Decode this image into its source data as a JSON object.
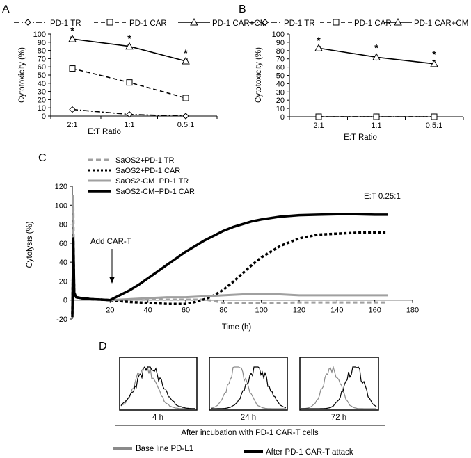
{
  "panels": {
    "A": {
      "label": "A",
      "legend": [
        "PD-1 TR",
        "PD-1 CAR",
        "PD-1 CAR+CM"
      ]
    },
    "B": {
      "label": "B",
      "legend": [
        "PD-1 TR",
        "PD-1 CAR",
        "PD-1 CAR+CM"
      ]
    },
    "C": {
      "label": "C",
      "legend": [
        "SaOS2+PD-1 TR",
        "SaOS2+PD-1 CAR",
        "SaOS2-CM+PD-1 TR",
        "SaOS2-CM+PD-1 CAR"
      ],
      "ratio_text": "E:T 0.25:1",
      "annotation": "Add CAR-T"
    },
    "D": {
      "label": "D",
      "times": [
        "4 h",
        "24 h",
        "72 h"
      ],
      "caption": "After incubation with PD-1 CAR-T cells",
      "legend_baseline": "Base line PD-L1",
      "legend_after": "After PD-1 CAR-T attack",
      "colors": {
        "baseline": "#8a8a8a",
        "after": "#000000"
      }
    }
  },
  "chart_data": [
    {
      "id": "A",
      "type": "line",
      "title": "",
      "xlabel": "E:T Ratio",
      "ylabel": "Cytotoxicity (%)",
      "categories": [
        "2:1",
        "1:1",
        "0.5:1"
      ],
      "yticks": [
        0,
        10,
        20,
        30,
        40,
        50,
        60,
        70,
        80,
        90,
        100
      ],
      "ylim": [
        0,
        100
      ],
      "series": [
        {
          "name": "PD-1 TR",
          "values": [
            8,
            2,
            0
          ],
          "errors": [
            0.5,
            0.5,
            0.5
          ],
          "marker": "diamond",
          "dash": "dashdot",
          "sig": [
            false,
            false,
            false
          ]
        },
        {
          "name": "PD-1 CAR",
          "values": [
            58,
            41,
            22
          ],
          "errors": [
            1,
            1.5,
            2
          ],
          "marker": "square",
          "dash": "dashed",
          "sig": [
            false,
            false,
            false
          ]
        },
        {
          "name": "PD-1 CAR+CM",
          "values": [
            94,
            85,
            67
          ],
          "errors": [
            2.5,
            2.5,
            2.5
          ],
          "marker": "triangle",
          "dash": "solid",
          "sig": [
            true,
            true,
            true
          ]
        }
      ],
      "annotations": [
        "*",
        "*",
        "*"
      ]
    },
    {
      "id": "B",
      "type": "line",
      "title": "",
      "xlabel": "E:T Ratio",
      "ylabel": "Cytotoxicity (%)",
      "categories": [
        "2:1",
        "1:1",
        "0.5:1"
      ],
      "yticks": [
        0,
        10,
        20,
        30,
        40,
        50,
        60,
        70,
        80,
        90,
        100
      ],
      "ylim": [
        0,
        100
      ],
      "series": [
        {
          "name": "PD-1 TR",
          "values": [
            0,
            0,
            0
          ],
          "errors": [
            0,
            0,
            0
          ],
          "marker": "diamond",
          "dash": "dashdot",
          "sig": [
            false,
            false,
            false
          ]
        },
        {
          "name": "PD-1 CAR",
          "values": [
            0,
            0,
            0
          ],
          "errors": [
            0,
            0,
            0
          ],
          "marker": "square",
          "dash": "dashed",
          "sig": [
            false,
            false,
            false
          ]
        },
        {
          "name": "PD-1 CAR+CM",
          "values": [
            83,
            72,
            64
          ],
          "errors": [
            2,
            4,
            4
          ],
          "marker": "triangle",
          "dash": "solid",
          "sig": [
            true,
            true,
            true
          ]
        }
      ],
      "annotations": [
        "*",
        "*",
        "*"
      ]
    },
    {
      "id": "C",
      "type": "line",
      "title": "",
      "xlabel": "Time (h)",
      "ylabel": "Cytolysis (%)",
      "xticks": [
        20,
        40,
        60,
        80,
        100,
        120,
        140,
        160,
        180
      ],
      "yticks": [
        -20,
        0,
        20,
        40,
        60,
        80,
        100,
        120
      ],
      "xlim": [
        0,
        180
      ],
      "ylim": [
        -20,
        120
      ],
      "series": [
        {
          "name": "SaOS2+PD-1 TR",
          "color": "#a0a0a0",
          "dash": "dashed",
          "x": [
            0,
            0.5,
            1,
            2,
            5,
            10,
            15,
            20,
            25,
            30,
            40,
            50,
            60,
            70,
            75,
            80,
            90,
            100,
            110,
            120,
            130,
            140,
            150,
            160,
            167
          ],
          "y": [
            -18,
            110,
            8,
            3,
            2,
            1,
            0.5,
            0,
            0,
            0.5,
            0.5,
            0.5,
            0.5,
            0.5,
            -1,
            -3,
            -3,
            -3,
            -3,
            -2.5,
            -2.5,
            -2.5,
            -2.5,
            -2.5,
            -2.5
          ]
        },
        {
          "name": "SaOS2+PD-1 CAR",
          "color": "#000000",
          "dash": "dotted",
          "x": [
            0,
            0.5,
            1,
            2,
            5,
            10,
            15,
            20,
            25,
            30,
            40,
            50,
            55,
            60,
            65,
            70,
            75,
            80,
            85,
            90,
            95,
            100,
            110,
            120,
            130,
            140,
            150,
            160,
            167
          ],
          "y": [
            -15,
            55,
            6,
            3,
            2,
            1,
            0.5,
            0,
            -1,
            -2,
            -3,
            -4,
            -4,
            -4,
            -2,
            1,
            5,
            11,
            19,
            28,
            37,
            45,
            57,
            65,
            69,
            70,
            71,
            71.5,
            71.5
          ]
        },
        {
          "name": "SaOS2-CM+PD-1 TR",
          "color": "#a0a0a0",
          "dash": "solid",
          "x": [
            0,
            0.5,
            1,
            2,
            5,
            10,
            15,
            20,
            30,
            40,
            50,
            60,
            70,
            80,
            90,
            100,
            110,
            120,
            130,
            140,
            150,
            160,
            167
          ],
          "y": [
            -16,
            60,
            8,
            3,
            2,
            1,
            0.5,
            0,
            1,
            2,
            3,
            3,
            4,
            5,
            6,
            6,
            6,
            5,
            5,
            5,
            5,
            5,
            5
          ]
        },
        {
          "name": "SaOS2-CM+PD-1 CAR",
          "color": "#000000",
          "dash": "solid",
          "x": [
            0,
            0.5,
            1,
            2,
            5,
            10,
            15,
            20,
            25,
            30,
            35,
            40,
            45,
            50,
            55,
            60,
            65,
            70,
            75,
            80,
            85,
            90,
            95,
            100,
            110,
            120,
            130,
            140,
            150,
            160,
            167
          ],
          "y": [
            -18,
            65,
            8,
            3,
            2,
            1,
            0.5,
            0,
            5,
            10,
            16,
            23,
            30,
            37,
            44,
            51,
            57,
            63,
            68,
            73,
            77,
            80,
            83,
            85,
            88,
            89.5,
            90,
            90.5,
            90.5,
            90,
            90
          ]
        }
      ],
      "annotations": [
        "Add CAR-T",
        "E:T 0.25:1"
      ]
    }
  ]
}
